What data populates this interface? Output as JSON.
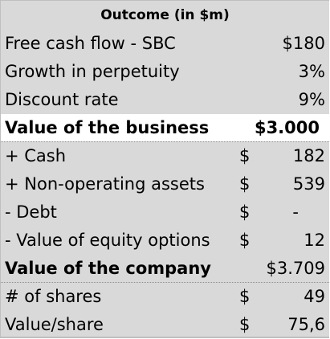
{
  "title": "Outcome (in $m)",
  "rows": [
    {
      "label": "Free cash flow - SBC",
      "currency": "",
      "value": "$180"
    },
    {
      "label": "Growth in perpetuity",
      "currency": "",
      "value": "3%"
    },
    {
      "label": "Discount rate",
      "currency": "",
      "value": "9%"
    },
    {
      "label": "Value of the business",
      "currency": "",
      "value": "$3.000"
    },
    {
      "label": "+ Cash",
      "currency": "$",
      "value": "182"
    },
    {
      "label": "+ Non-operating assets",
      "currency": "$",
      "value": "539"
    },
    {
      "label": "- Debt",
      "currency": "$",
      "value": "-"
    },
    {
      "label": "- Value of equity options",
      "currency": "$",
      "value": "12"
    },
    {
      "label": "Value of the company",
      "currency": "",
      "value": "$3.709"
    },
    {
      "label": "# of shares",
      "currency": "$",
      "value": "49"
    },
    {
      "label": "Value/share",
      "currency": "$",
      "value": "75,6"
    }
  ],
  "colors": {
    "row_fill": "#d9d9d9",
    "highlight_fill": "#ffffff",
    "text": "#000000"
  }
}
